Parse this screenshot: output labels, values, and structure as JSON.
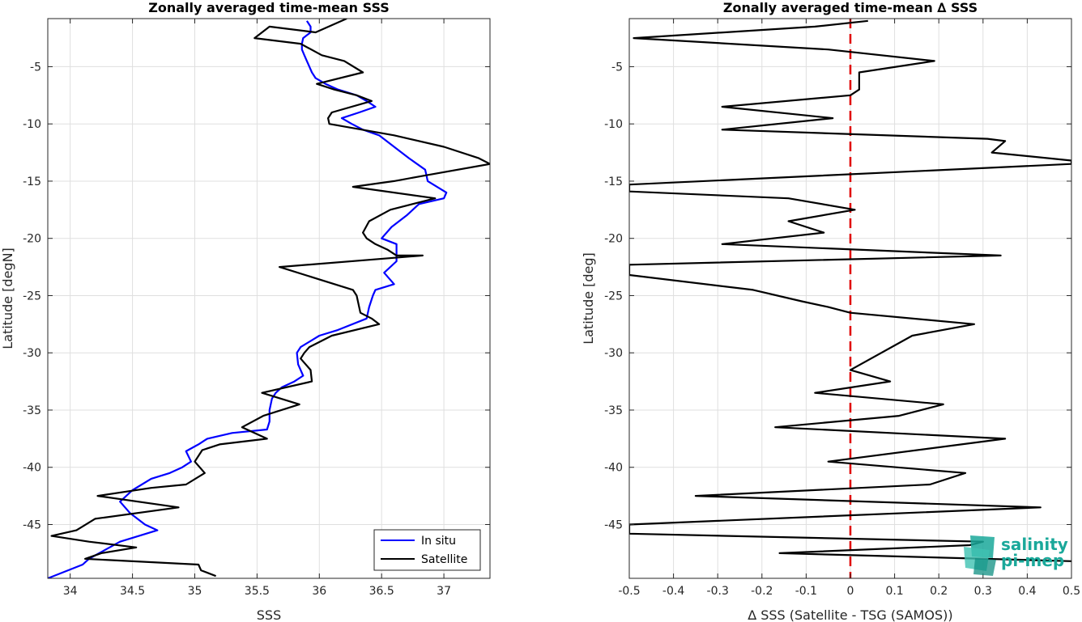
{
  "chart_data": [
    {
      "type": "line",
      "title": "Zonally averaged time-mean SSS",
      "xlabel": "SSS",
      "ylabel": "Latitude [degN]",
      "xlim": [
        33.82,
        37.37
      ],
      "ylim": [
        -49.7,
        -0.8
      ],
      "xticks": [
        34,
        34.5,
        35,
        35.5,
        36,
        36.5,
        37
      ],
      "yticks": [
        -5,
        -10,
        -15,
        -20,
        -25,
        -30,
        -35,
        -40,
        -45
      ],
      "grid": true,
      "legend": "bottom-right",
      "series": [
        {
          "name": "In situ",
          "color": "#0000ff",
          "points": [
            [
              35.9,
              -1
            ],
            [
              35.93,
              -1.5
            ],
            [
              35.93,
              -2
            ],
            [
              35.87,
              -2.5
            ],
            [
              35.86,
              -3
            ],
            [
              35.86,
              -3.5
            ],
            [
              35.88,
              -4
            ],
            [
              35.9,
              -4.5
            ],
            [
              35.92,
              -5
            ],
            [
              35.94,
              -5.5
            ],
            [
              35.97,
              -6
            ],
            [
              36.05,
              -6.5
            ],
            [
              36.15,
              -7
            ],
            [
              36.3,
              -7.5
            ],
            [
              36.38,
              -8
            ],
            [
              36.45,
              -8.5
            ],
            [
              36.32,
              -9
            ],
            [
              36.18,
              -9.5
            ],
            [
              36.26,
              -10
            ],
            [
              36.35,
              -10.5
            ],
            [
              36.48,
              -11
            ],
            [
              36.6,
              -12
            ],
            [
              36.72,
              -13
            ],
            [
              36.85,
              -14
            ],
            [
              36.87,
              -15
            ],
            [
              37.02,
              -16
            ],
            [
              37.0,
              -16.5
            ],
            [
              36.8,
              -17
            ],
            [
              36.7,
              -18
            ],
            [
              36.58,
              -19
            ],
            [
              36.5,
              -20
            ],
            [
              36.62,
              -20.5
            ],
            [
              36.62,
              -21
            ],
            [
              36.62,
              -22
            ],
            [
              36.52,
              -23
            ],
            [
              36.6,
              -24
            ],
            [
              36.45,
              -24.5
            ],
            [
              36.43,
              -25
            ],
            [
              36.4,
              -26
            ],
            [
              36.38,
              -27
            ],
            [
              36.15,
              -28
            ],
            [
              36.0,
              -28.5
            ],
            [
              35.85,
              -29.5
            ],
            [
              35.82,
              -30
            ],
            [
              35.83,
              -31
            ],
            [
              35.87,
              -32
            ],
            [
              35.8,
              -32.5
            ],
            [
              35.7,
              -33
            ],
            [
              35.65,
              -33.5
            ],
            [
              35.62,
              -34
            ],
            [
              35.6,
              -35
            ],
            [
              35.6,
              -36
            ],
            [
              35.58,
              -36.7
            ],
            [
              35.3,
              -37
            ],
            [
              35.1,
              -37.5
            ],
            [
              35.03,
              -38
            ],
            [
              34.93,
              -38.6
            ],
            [
              34.97,
              -39.5
            ],
            [
              34.9,
              -40
            ],
            [
              34.8,
              -40.5
            ],
            [
              34.65,
              -41
            ],
            [
              34.5,
              -42
            ],
            [
              34.4,
              -43
            ],
            [
              34.48,
              -44
            ],
            [
              34.6,
              -45
            ],
            [
              34.7,
              -45.5
            ],
            [
              34.4,
              -46.5
            ],
            [
              34.15,
              -48
            ],
            [
              34.1,
              -48.5
            ],
            [
              33.82,
              -49.7
            ]
          ]
        },
        {
          "name": "Satellite",
          "color": "#000000",
          "points": [
            [
              36.22,
              -0.8
            ],
            [
              35.97,
              -2
            ],
            [
              35.6,
              -1.5
            ],
            [
              35.48,
              -2.5
            ],
            [
              35.85,
              -3
            ],
            [
              36.02,
              -4
            ],
            [
              36.2,
              -4.5
            ],
            [
              36.35,
              -5.5
            ],
            [
              35.98,
              -6.5
            ],
            [
              36.12,
              -7
            ],
            [
              36.3,
              -7.5
            ],
            [
              36.42,
              -8
            ],
            [
              36.1,
              -9
            ],
            [
              36.07,
              -9.5
            ],
            [
              36.08,
              -10
            ],
            [
              36.6,
              -11
            ],
            [
              37.0,
              -12
            ],
            [
              37.28,
              -13
            ],
            [
              37.37,
              -13.5
            ],
            [
              36.85,
              -14.5
            ],
            [
              36.6,
              -15
            ],
            [
              36.27,
              -15.5
            ],
            [
              36.93,
              -16.5
            ],
            [
              36.57,
              -17.5
            ],
            [
              36.4,
              -18.5
            ],
            [
              36.35,
              -19.5
            ],
            [
              36.38,
              -20
            ],
            [
              36.45,
              -20.5
            ],
            [
              36.55,
              -21
            ],
            [
              36.62,
              -21.5
            ],
            [
              36.83,
              -21.5
            ],
            [
              35.68,
              -22.5
            ],
            [
              36.27,
              -24.5
            ],
            [
              36.3,
              -25
            ],
            [
              36.33,
              -26.5
            ],
            [
              36.42,
              -27
            ],
            [
              36.48,
              -27.5
            ],
            [
              36.1,
              -28.5
            ],
            [
              35.92,
              -29.5
            ],
            [
              35.88,
              -30
            ],
            [
              35.85,
              -30.5
            ],
            [
              35.93,
              -31.5
            ],
            [
              35.94,
              -32.5
            ],
            [
              35.54,
              -33.5
            ],
            [
              35.84,
              -34.5
            ],
            [
              35.55,
              -35.5
            ],
            [
              35.38,
              -36.5
            ],
            [
              35.58,
              -37.5
            ],
            [
              35.2,
              -38
            ],
            [
              35.06,
              -38.5
            ],
            [
              35.0,
              -39.5
            ],
            [
              35.08,
              -40.5
            ],
            [
              34.93,
              -41.5
            ],
            [
              34.65,
              -41.8
            ],
            [
              34.22,
              -42.5
            ],
            [
              34.87,
              -43.5
            ],
            [
              34.2,
              -44.5
            ],
            [
              34.05,
              -45.5
            ],
            [
              33.85,
              -46
            ],
            [
              34.15,
              -46.5
            ],
            [
              34.53,
              -47
            ],
            [
              34.25,
              -47.5
            ],
            [
              34.12,
              -48
            ],
            [
              35.03,
              -48.5
            ],
            [
              35.05,
              -49
            ],
            [
              35.17,
              -49.5
            ]
          ]
        }
      ]
    },
    {
      "type": "line",
      "title": "Zonally averaged time-mean ∆ SSS",
      "xlabel": "∆ SSS (Satellite - TSG (SAMOS))",
      "ylabel": "Latitude [deg]",
      "xlim": [
        -0.5,
        0.5
      ],
      "ylim": [
        -49.7,
        -0.8
      ],
      "xticks": [
        -0.5,
        -0.4,
        -0.3,
        -0.2,
        -0.1,
        0,
        0.1,
        0.2,
        0.3,
        0.4,
        0.5
      ],
      "yticks": [
        -5,
        -10,
        -15,
        -20,
        -25,
        -30,
        -35,
        -40,
        -45
      ],
      "grid": true,
      "zero_line_color": "#e00000",
      "series": [
        {
          "color": "#000000",
          "points": [
            [
              0.04,
              -1.0
            ],
            [
              -0.08,
              -1.5
            ],
            [
              -0.49,
              -2.5
            ],
            [
              -0.05,
              -3.5
            ],
            [
              0.19,
              -4.5
            ],
            [
              0.02,
              -5.5
            ],
            [
              0.02,
              -7
            ],
            [
              0.0,
              -7.5
            ],
            [
              -0.29,
              -8.5
            ],
            [
              -0.04,
              -9.5
            ],
            [
              -0.29,
              -10.5
            ],
            [
              0.31,
              -11.3
            ],
            [
              0.35,
              -11.5
            ],
            [
              0.32,
              -12.5
            ],
            [
              0.5,
              -13.2
            ],
            [
              0.5,
              -13.5
            ],
            [
              -0.5,
              -15.3
            ],
            [
              -0.5,
              -15.9
            ],
            [
              -0.14,
              -16.5
            ],
            [
              0.01,
              -17.5
            ],
            [
              -0.14,
              -18.5
            ],
            [
              -0.06,
              -19.5
            ],
            [
              -0.29,
              -20.5
            ],
            [
              0.34,
              -21.5
            ],
            [
              -0.5,
              -22.3
            ],
            [
              -0.5,
              -23.2
            ],
            [
              -0.22,
              -24.5
            ],
            [
              -0.11,
              -25.5
            ],
            [
              -0.05,
              -26
            ],
            [
              0.0,
              -26.5
            ],
            [
              0.28,
              -27.5
            ],
            [
              0.14,
              -28.5
            ],
            [
              0.0,
              -31.5
            ],
            [
              0.09,
              -32.5
            ],
            [
              -0.08,
              -33.5
            ],
            [
              0.21,
              -34.5
            ],
            [
              0.11,
              -35.5
            ],
            [
              -0.17,
              -36.5
            ],
            [
              0.35,
              -37.5
            ],
            [
              -0.05,
              -39.5
            ],
            [
              0.26,
              -40.5
            ],
            [
              0.18,
              -41.5
            ],
            [
              -0.35,
              -42.5
            ],
            [
              0.43,
              -43.5
            ],
            [
              -0.5,
              -45
            ],
            [
              -0.5,
              -45.8
            ],
            [
              0.3,
              -46.5
            ],
            [
              0.27,
              -46.8
            ],
            [
              -0.16,
              -47.5
            ],
            [
              0.5,
              -48.2
            ]
          ]
        }
      ]
    }
  ],
  "legend": {
    "in_situ_label": "In situ",
    "satellite_label": "Satellite"
  },
  "logo": {
    "line1": "salinity",
    "line2": "pi-mep",
    "color": "#1aa89a"
  }
}
